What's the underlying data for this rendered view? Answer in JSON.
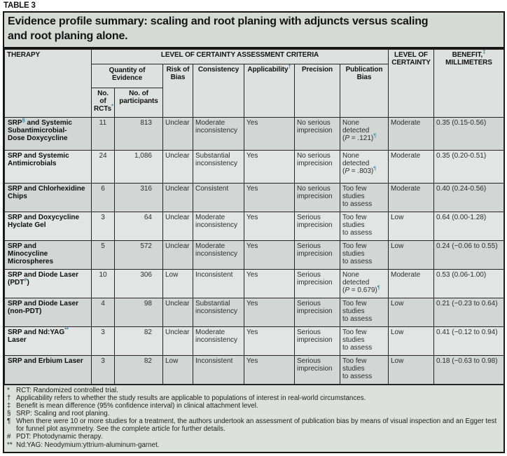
{
  "label": "TABLE 3",
  "title": "Evidence profile summary: scaling and root planing with adjuncts versus scaling\nand root planing alone.",
  "colors": {
    "superscript_accent": "#337f9e",
    "title_bg": "#d6dad7",
    "header_bg": "#dde1e0",
    "row_shade_dark": "#d2d7d6",
    "row_shade_light": "#e2e5e3",
    "footnote_bg": "#dde1dd",
    "border": "#161616"
  },
  "headers": {
    "therapy": "THERAPY",
    "criteria": "LEVEL OF CERTAINTY ASSESSMENT CRITERIA",
    "quantity": "Quantity of\nEvidence",
    "rcts": "No.\nof\nRCTs^{*}",
    "participants": "No. of\nparticipants",
    "risk_of_bias": "Risk of\nBias",
    "consistency": "Consistency",
    "applicability": "Applicability^{†}",
    "precision": "Precision",
    "publication_bias": "Publication\nBias",
    "certainty": "LEVEL OF\nCERTAINTY",
    "benefit": "BENEFIT,^{‡}\nMILLIMETERS"
  },
  "rows": [
    {
      "therapy": "SRP^{§} and Systemic\nSubantimicrobial-\nDose Doxycycline",
      "rcts": "11",
      "participants": "813",
      "risk_of_bias": "Unclear",
      "consistency": "Moderate\ninconsistency",
      "applicability": "Yes",
      "precision": "No serious\nimprecision",
      "publication_bias": "None\ndetected\n(~P~ = .121)^{¶}",
      "certainty": "Moderate",
      "benefit": "0.35 (0.15-0.56)"
    },
    {
      "therapy": "SRP and Systemic\nAntimicrobials",
      "rcts": "24",
      "participants": "1,086",
      "risk_of_bias": "Unclear",
      "consistency": "Substantial\ninconsistency",
      "applicability": "Yes",
      "precision": "No serious\nimprecision",
      "publication_bias": "None\ndetected\n(~P~ = .803)^{¶}",
      "certainty": "Moderate",
      "benefit": "0.35 (0.20-0.51)"
    },
    {
      "therapy": "SRP and Chlorhexidine\nChips",
      "rcts": "6",
      "participants": "316",
      "risk_of_bias": "Unclear",
      "consistency": "Consistent",
      "applicability": "Yes",
      "precision": "No serious\nimprecision",
      "publication_bias": "Too few\nstudies\nto assess",
      "certainty": "Moderate",
      "benefit": "0.40 (0.24-0.56)"
    },
    {
      "therapy": "SRP and Doxycycline\nHyclate Gel",
      "rcts": "3",
      "participants": "64",
      "risk_of_bias": "Unclear",
      "consistency": "Moderate\ninconsistency",
      "applicability": "Yes",
      "precision": "Serious\nimprecision",
      "publication_bias": "Too few\nstudies\nto assess",
      "certainty": "Low",
      "benefit": "0.64 (0.00-1.28)"
    },
    {
      "therapy": "SRP and\nMinocycline\nMicrospheres",
      "rcts": "5",
      "participants": "572",
      "risk_of_bias": "Unclear",
      "consistency": "Moderate\ninconsistency",
      "applicability": "Yes",
      "precision": "Serious\nimprecision",
      "publication_bias": "Too few\nstudies\nto assess",
      "certainty": "Low",
      "benefit": "0.24 (−0.06 to 0.55)"
    },
    {
      "therapy": "SRP and Diode Laser\n(PDT^{#})",
      "rcts": "10",
      "participants": "306",
      "risk_of_bias": "Low",
      "consistency": "Inconsistent",
      "applicability": "Yes",
      "precision": "Serious\nimprecision",
      "publication_bias": "None\ndetected\n(~P~ = 0.679)^{¶}",
      "certainty": "Moderate",
      "benefit": "0.53 (0.06-1.00)"
    },
    {
      "therapy": "SRP and Diode Laser\n(non-PDT)",
      "rcts": "4",
      "participants": "98",
      "risk_of_bias": "Unclear",
      "consistency": "Substantial\ninconsistency",
      "applicability": "Yes",
      "precision": "Serious\nimprecision",
      "publication_bias": "Too few\nstudies\nto assess",
      "certainty": "Low",
      "benefit": "0.21 (−0.23 to 0.64)"
    },
    {
      "therapy": "SRP and Nd:YAG^{**}\nLaser",
      "rcts": "3",
      "participants": "82",
      "risk_of_bias": "Unclear",
      "consistency": "Moderate\ninconsistency",
      "applicability": "Yes",
      "precision": "Serious\nimprecision",
      "publication_bias": "Too few\nstudies\nto assess",
      "certainty": "Low",
      "benefit": "0.41 (−0.12 to 0.94)"
    },
    {
      "therapy": "SRP and Erbium Laser",
      "rcts": "3",
      "participants": "82",
      "risk_of_bias": "Low",
      "consistency": "Inconsistent",
      "applicability": "Yes",
      "precision": "Serious\nimprecision",
      "publication_bias": "Too few\nstudies\nto assess",
      "certainty": "Low",
      "benefit": "0.18 (−0.63 to 0.98)"
    }
  ],
  "footnotes": [
    {
      "sym": "*",
      "text": "RCT: Randomized controlled trial."
    },
    {
      "sym": "†",
      "text": "Applicability refers to whether the study results are applicable to populations of interest in real-world circumstances."
    },
    {
      "sym": "‡",
      "text": "Benefit is mean difference (95% confidence interval) in clinical attachment level."
    },
    {
      "sym": "§",
      "text": "SRP: Scaling and root planing."
    },
    {
      "sym": "¶",
      "text": "When there were 10 or more studies for a treatment, the authors undertook an assessment of publication bias by means of visual inspection and an Egger test for funnel plot asymmetry. See the complete article for further details."
    },
    {
      "sym": "#",
      "text": "PDT: Photodynamic therapy."
    },
    {
      "sym": "**",
      "text": "Nd:YAG: Neodymium:yttrium-aluminum-garnet."
    }
  ]
}
